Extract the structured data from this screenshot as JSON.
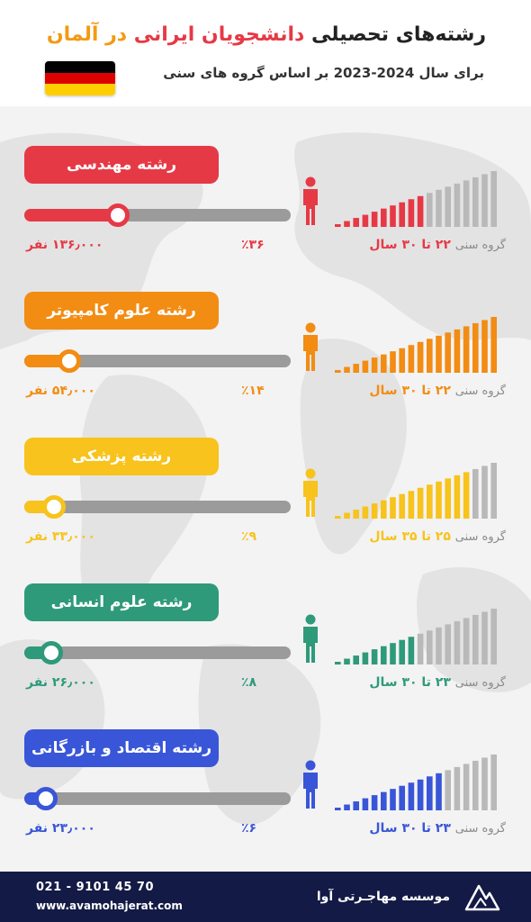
{
  "header": {
    "title_part1": "رشته‌های تحصیلی ",
    "title_part2": "دانشجویان ایرانی",
    "title_part3": " در آلمان",
    "subtitle": "برای سال 2024-2023 بر اساس گروه های سنی"
  },
  "colors": {
    "title_dark": "#222222",
    "title_orange": "#f39a12",
    "title_red": "#e63946",
    "footer_bg": "#131a45"
  },
  "flag": {
    "icon": "germany-flag-icon",
    "colors": [
      "#000000",
      "#dd0000",
      "#ffce00"
    ]
  },
  "sections": [
    {
      "label": "رشته مهندسی",
      "color": "#e63946",
      "level": 0.35,
      "percent": "٪۳۶",
      "count": "۱۳۶٫۰۰۰ نفر",
      "age_prefix": "گروه سنی",
      "age_range": "۲۲ تا ۳۰ سال",
      "bars_colored": 10,
      "bars_total": 18
    },
    {
      "label": "رشته علوم کامپیوتر",
      "color": "#f28c13",
      "level": 0.17,
      "percent": "٪۱۴",
      "count": "۵۴٫۰۰۰ نفر",
      "age_prefix": "گروه سنی",
      "age_range": "۲۲ تا ۳۰ سال",
      "bars_colored": 18,
      "bars_total": 18
    },
    {
      "label": "رشته پزشکی",
      "color": "#f7c31c",
      "level": 0.11,
      "percent": "٪۹",
      "count": "۳۳٫۰۰۰ نفر",
      "age_prefix": "گروه سنی",
      "age_range": "۲۵ تا ۳۵ سال",
      "bars_colored": 15,
      "bars_total": 18
    },
    {
      "label": "رشته علوم انسانی",
      "color": "#2e9a7a",
      "level": 0.1,
      "percent": "٪۸",
      "count": "۲۶٫۰۰۰ نفر",
      "age_prefix": "گروه سنی",
      "age_range": "۲۳ تا ۳۰ سال",
      "bars_colored": 9,
      "bars_total": 18
    },
    {
      "label": "رشته اقتصاد و بازرگانی",
      "color": "#3956d8",
      "level": 0.08,
      "percent": "٪۶",
      "count": "۲۳٫۰۰۰ نفر",
      "age_prefix": "گروه سنی",
      "age_range": "۲۳ تا ۳۰ سال",
      "bars_colored": 12,
      "bars_total": 18
    }
  ],
  "footer": {
    "phone": "021 - 9101 45 70",
    "website": "www.avamohajerat.com",
    "brand": "موسسه مهاجـرتی آوا",
    "logo_icon": "ava-mountain-logo-icon"
  }
}
